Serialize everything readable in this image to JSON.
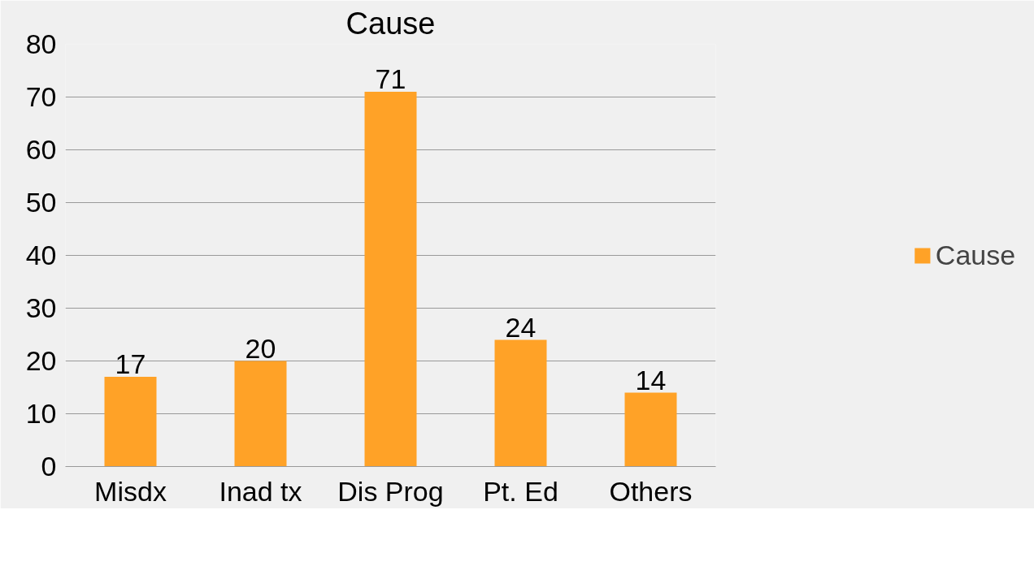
{
  "chart_data": {
    "type": "bar",
    "title": "Cause",
    "categories": [
      "Misdx",
      "Inad tx",
      "Dis Prog",
      "Pt. Ed",
      "Others"
    ],
    "series": [
      {
        "name": "Cause",
        "color": "#ffa227",
        "values": [
          17,
          20,
          71,
          24,
          14
        ]
      }
    ],
    "ylim": [
      0,
      80
    ],
    "yticks": [
      0,
      10,
      20,
      30,
      40,
      50,
      60,
      70,
      80
    ],
    "grid": "y",
    "legend": "right",
    "data_labels": true
  }
}
